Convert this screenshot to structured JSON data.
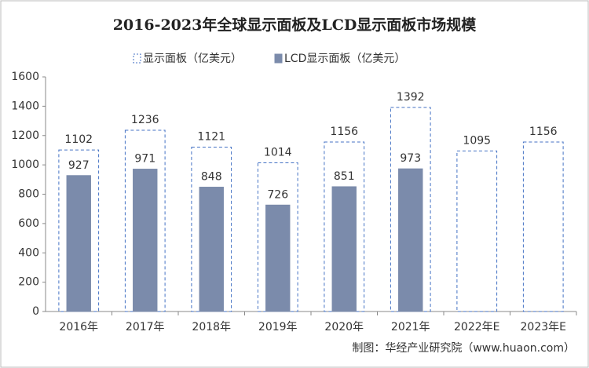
{
  "chart_data": {
    "type": "bar",
    "title": "2016-2023年全球显示面板及LCD显示面板市场规模",
    "categories": [
      "2016年",
      "2017年",
      "2018年",
      "2019年",
      "2020年",
      "2021年",
      "2022年E",
      "2023年E"
    ],
    "series": [
      {
        "name": "显示面板（亿美元）",
        "color": "#4472c4",
        "style": "dashed-outline",
        "values": [
          1102,
          1236,
          1121,
          1014,
          1156,
          1392,
          1095,
          1156
        ]
      },
      {
        "name": "LCD显示面板（亿美元）",
        "color": "#7b8bab",
        "style": "filled",
        "values": [
          927,
          971,
          848,
          726,
          851,
          973,
          null,
          null
        ]
      }
    ],
    "ylim": [
      0,
      1600
    ],
    "yticks": [
      0,
      200,
      400,
      600,
      800,
      1000,
      1200,
      1400,
      1600
    ],
    "grid": false,
    "source": "制图：华经产业研究院（www.huaon.com）"
  }
}
